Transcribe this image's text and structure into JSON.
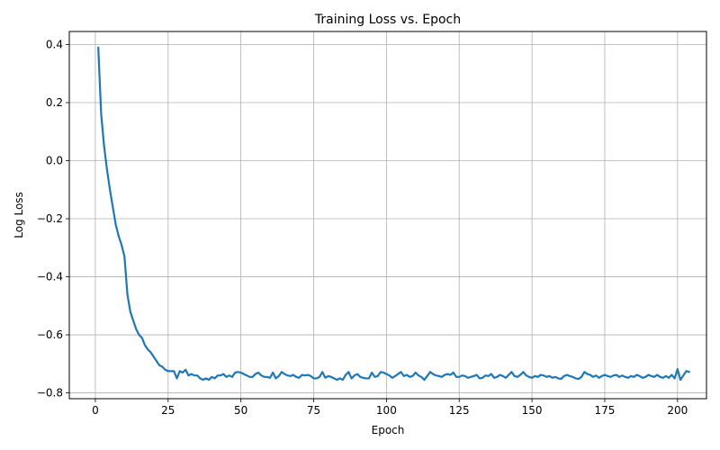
{
  "chart_data": {
    "type": "line",
    "title": "Training Loss vs. Epoch",
    "xlabel": "Epoch",
    "ylabel": "Log Loss",
    "xlim": [
      -8.95,
      209.95
    ],
    "ylim": [
      -0.82,
      0.445
    ],
    "xticks": [
      0,
      25,
      50,
      75,
      100,
      125,
      150,
      175,
      200
    ],
    "yticks": [
      -0.8,
      -0.6,
      -0.4,
      -0.2,
      0.0,
      0.2,
      0.4
    ],
    "xtick_labels": [
      "0",
      "25",
      "50",
      "75",
      "100",
      "125",
      "150",
      "175",
      "200"
    ],
    "ytick_labels": [
      "−0.8",
      "−0.6",
      "−0.4",
      "−0.2",
      "0.0",
      "0.2",
      "0.4"
    ],
    "grid": true,
    "line_color": "#1f77b4",
    "series": [
      {
        "x_start": 1,
        "x_step": 1,
        "values": [
          0.39,
          0.16,
          0.05,
          -0.03,
          -0.1,
          -0.16,
          -0.22,
          -0.26,
          -0.29,
          -0.33,
          -0.46,
          -0.52,
          -0.55,
          -0.58,
          -0.6,
          -0.61,
          -0.635,
          -0.65,
          -0.66,
          -0.675,
          -0.69,
          -0.705,
          -0.71,
          -0.72,
          -0.725,
          -0.725,
          -0.725,
          -0.75,
          -0.725,
          -0.73,
          -0.72,
          -0.74,
          -0.735,
          -0.74,
          -0.74,
          -0.75,
          -0.755,
          -0.75,
          -0.755,
          -0.745,
          -0.75,
          -0.74,
          -0.74,
          -0.735,
          -0.745,
          -0.74,
          -0.745,
          -0.73,
          -0.728,
          -0.73,
          -0.735,
          -0.74,
          -0.745,
          -0.745,
          -0.735,
          -0.73,
          -0.74,
          -0.745,
          -0.745,
          -0.748,
          -0.73,
          -0.75,
          -0.742,
          -0.728,
          -0.735,
          -0.74,
          -0.742,
          -0.738,
          -0.745,
          -0.748,
          -0.738,
          -0.74,
          -0.738,
          -0.742,
          -0.75,
          -0.75,
          -0.745,
          -0.728,
          -0.748,
          -0.742,
          -0.745,
          -0.75,
          -0.755,
          -0.75,
          -0.755,
          -0.738,
          -0.728,
          -0.75,
          -0.74,
          -0.735,
          -0.745,
          -0.748,
          -0.75,
          -0.75,
          -0.73,
          -0.745,
          -0.742,
          -0.728,
          -0.73,
          -0.735,
          -0.74,
          -0.748,
          -0.742,
          -0.735,
          -0.728,
          -0.742,
          -0.738,
          -0.745,
          -0.742,
          -0.73,
          -0.74,
          -0.745,
          -0.755,
          -0.742,
          -0.728,
          -0.735,
          -0.74,
          -0.742,
          -0.745,
          -0.738,
          -0.735,
          -0.738,
          -0.73,
          -0.745,
          -0.745,
          -0.74,
          -0.742,
          -0.748,
          -0.745,
          -0.742,
          -0.738,
          -0.75,
          -0.748,
          -0.74,
          -0.742,
          -0.735,
          -0.748,
          -0.745,
          -0.738,
          -0.742,
          -0.748,
          -0.738,
          -0.728,
          -0.742,
          -0.745,
          -0.738,
          -0.728,
          -0.74,
          -0.745,
          -0.748,
          -0.742,
          -0.745,
          -0.738,
          -0.74,
          -0.745,
          -0.742,
          -0.748,
          -0.745,
          -0.75,
          -0.752,
          -0.742,
          -0.738,
          -0.742,
          -0.745,
          -0.75,
          -0.752,
          -0.745,
          -0.728,
          -0.735,
          -0.738,
          -0.745,
          -0.74,
          -0.748,
          -0.742,
          -0.738,
          -0.742,
          -0.745,
          -0.74,
          -0.738,
          -0.745,
          -0.74,
          -0.745,
          -0.748,
          -0.742,
          -0.745,
          -0.738,
          -0.742,
          -0.748,
          -0.745,
          -0.738,
          -0.742,
          -0.745,
          -0.738,
          -0.745,
          -0.748,
          -0.742,
          -0.748,
          -0.738,
          -0.75,
          -0.718,
          -0.755,
          -0.74,
          -0.725,
          -0.728
        ]
      }
    ]
  }
}
